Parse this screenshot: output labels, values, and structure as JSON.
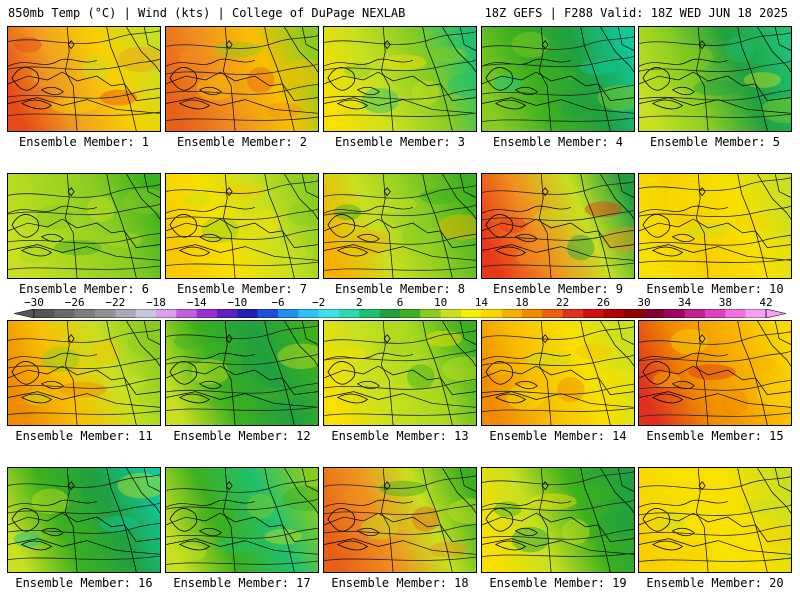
{
  "header": {
    "left": "850mb Temp (°C) | Wind (kts) | College of DuPage NEXLAB",
    "right": "18Z GEFS | F288 Valid: 18Z WED JUN 18 2025"
  },
  "colorbar": {
    "tick_labels": [
      "-30",
      "-26",
      "-22",
      "-18",
      "-14",
      "-10",
      "-6",
      "-2",
      "2",
      "6",
      "10",
      "14",
      "18",
      "22",
      "26",
      "30",
      "34",
      "38",
      "42"
    ],
    "colors": [
      "#555555",
      "#6a6a6a",
      "#7d7d7d",
      "#919191",
      "#a8a8b8",
      "#c6c6dc",
      "#d9a0ec",
      "#c060e0",
      "#9b30d0",
      "#6020c0",
      "#2020b0",
      "#2050d8",
      "#2090f0",
      "#30c0f8",
      "#40e0e8",
      "#30d8b0",
      "#20c070",
      "#20a040",
      "#3cb01e",
      "#88cc22",
      "#c8e020",
      "#f0f000",
      "#f8d800",
      "#f8b000",
      "#f08a00",
      "#e86010",
      "#e03020",
      "#d01010",
      "#b00000",
      "#900000",
      "#800030",
      "#a00060",
      "#c02090",
      "#e040c0",
      "#f070e0",
      "#f8a0f0"
    ]
  },
  "members": [
    {
      "label": "Ensemble Member: 1",
      "stops": [
        "#e84a18",
        "#f0a020",
        "#f8d000",
        "#c8e020"
      ]
    },
    {
      "label": "Ensemble Member: 2",
      "stops": [
        "#e86018",
        "#f09020",
        "#f8c000",
        "#88cc22"
      ]
    },
    {
      "label": "Ensemble Member: 3",
      "stops": [
        "#f8e000",
        "#c8e020",
        "#88cc22",
        "#20c070"
      ]
    },
    {
      "label": "Ensemble Member: 4",
      "stops": [
        "#88cc22",
        "#3cb01e",
        "#20a040",
        "#10c89a"
      ]
    },
    {
      "label": "Ensemble Member: 5",
      "stops": [
        "#c8e020",
        "#88cc22",
        "#20a040",
        "#20c070"
      ]
    },
    {
      "label": "Ensemble Member: 6",
      "stops": [
        "#c8e020",
        "#a8d820",
        "#88cc22",
        "#3cb01e"
      ]
    },
    {
      "label": "Ensemble Member: 7",
      "stops": [
        "#f8c800",
        "#f8e000",
        "#c8e020",
        "#88cc22"
      ]
    },
    {
      "label": "Ensemble Member: 8",
      "stops": [
        "#f8b000",
        "#c8e020",
        "#88cc22",
        "#3cb01e"
      ]
    },
    {
      "label": "Ensemble Member: 9",
      "stops": [
        "#e83818",
        "#f09020",
        "#c8e020",
        "#20a040"
      ]
    },
    {
      "label": "Ensemble Member: 10",
      "stops": [
        "#f8e000",
        "#f8d000",
        "#f8e000",
        "#c8e020"
      ]
    },
    {
      "label": "Ensemble Member: 11",
      "stops": [
        "#f08a00",
        "#f8c000",
        "#c8e020",
        "#88cc22"
      ]
    },
    {
      "label": "Ensemble Member: 12",
      "stops": [
        "#c8e020",
        "#3cb01e",
        "#20a040",
        "#3cb01e"
      ]
    },
    {
      "label": "Ensemble Member: 13",
      "stops": [
        "#f8e000",
        "#c8e020",
        "#a8d820",
        "#3cb01e"
      ]
    },
    {
      "label": "Ensemble Member: 14",
      "stops": [
        "#f08a00",
        "#f8c000",
        "#f8e000",
        "#c8e020"
      ]
    },
    {
      "label": "Ensemble Member: 15",
      "stops": [
        "#e03020",
        "#f08a00",
        "#f8b000",
        "#f8d800"
      ]
    },
    {
      "label": "Ensemble Member: 16",
      "stops": [
        "#c8e020",
        "#3cb01e",
        "#20a040",
        "#10c89a"
      ]
    },
    {
      "label": "Ensemble Member: 17",
      "stops": [
        "#c8e020",
        "#3cb01e",
        "#20c070",
        "#88cc22"
      ]
    },
    {
      "label": "Ensemble Member: 18",
      "stops": [
        "#e86018",
        "#f09020",
        "#c8e020",
        "#3cb01e"
      ]
    },
    {
      "label": "Ensemble Member: 19",
      "stops": [
        "#f8e000",
        "#c8e020",
        "#3cb01e",
        "#20a040"
      ]
    },
    {
      "label": "Ensemble Member: 20",
      "stops": [
        "#f8d000",
        "#f8e000",
        "#f8e000",
        "#c8e020"
      ]
    }
  ]
}
